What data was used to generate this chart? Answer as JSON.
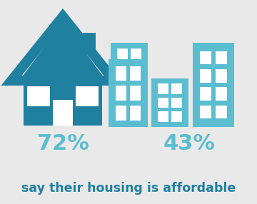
{
  "background_color": "#e9e9e9",
  "dark_teal": "#2080a0",
  "light_blue": "#5bbdd0",
  "pct_homeowner": "72%",
  "pct_renter": "43%",
  "caption": "say their housing is affordable",
  "pct_fontsize": 22,
  "caption_fontsize": 12.5
}
